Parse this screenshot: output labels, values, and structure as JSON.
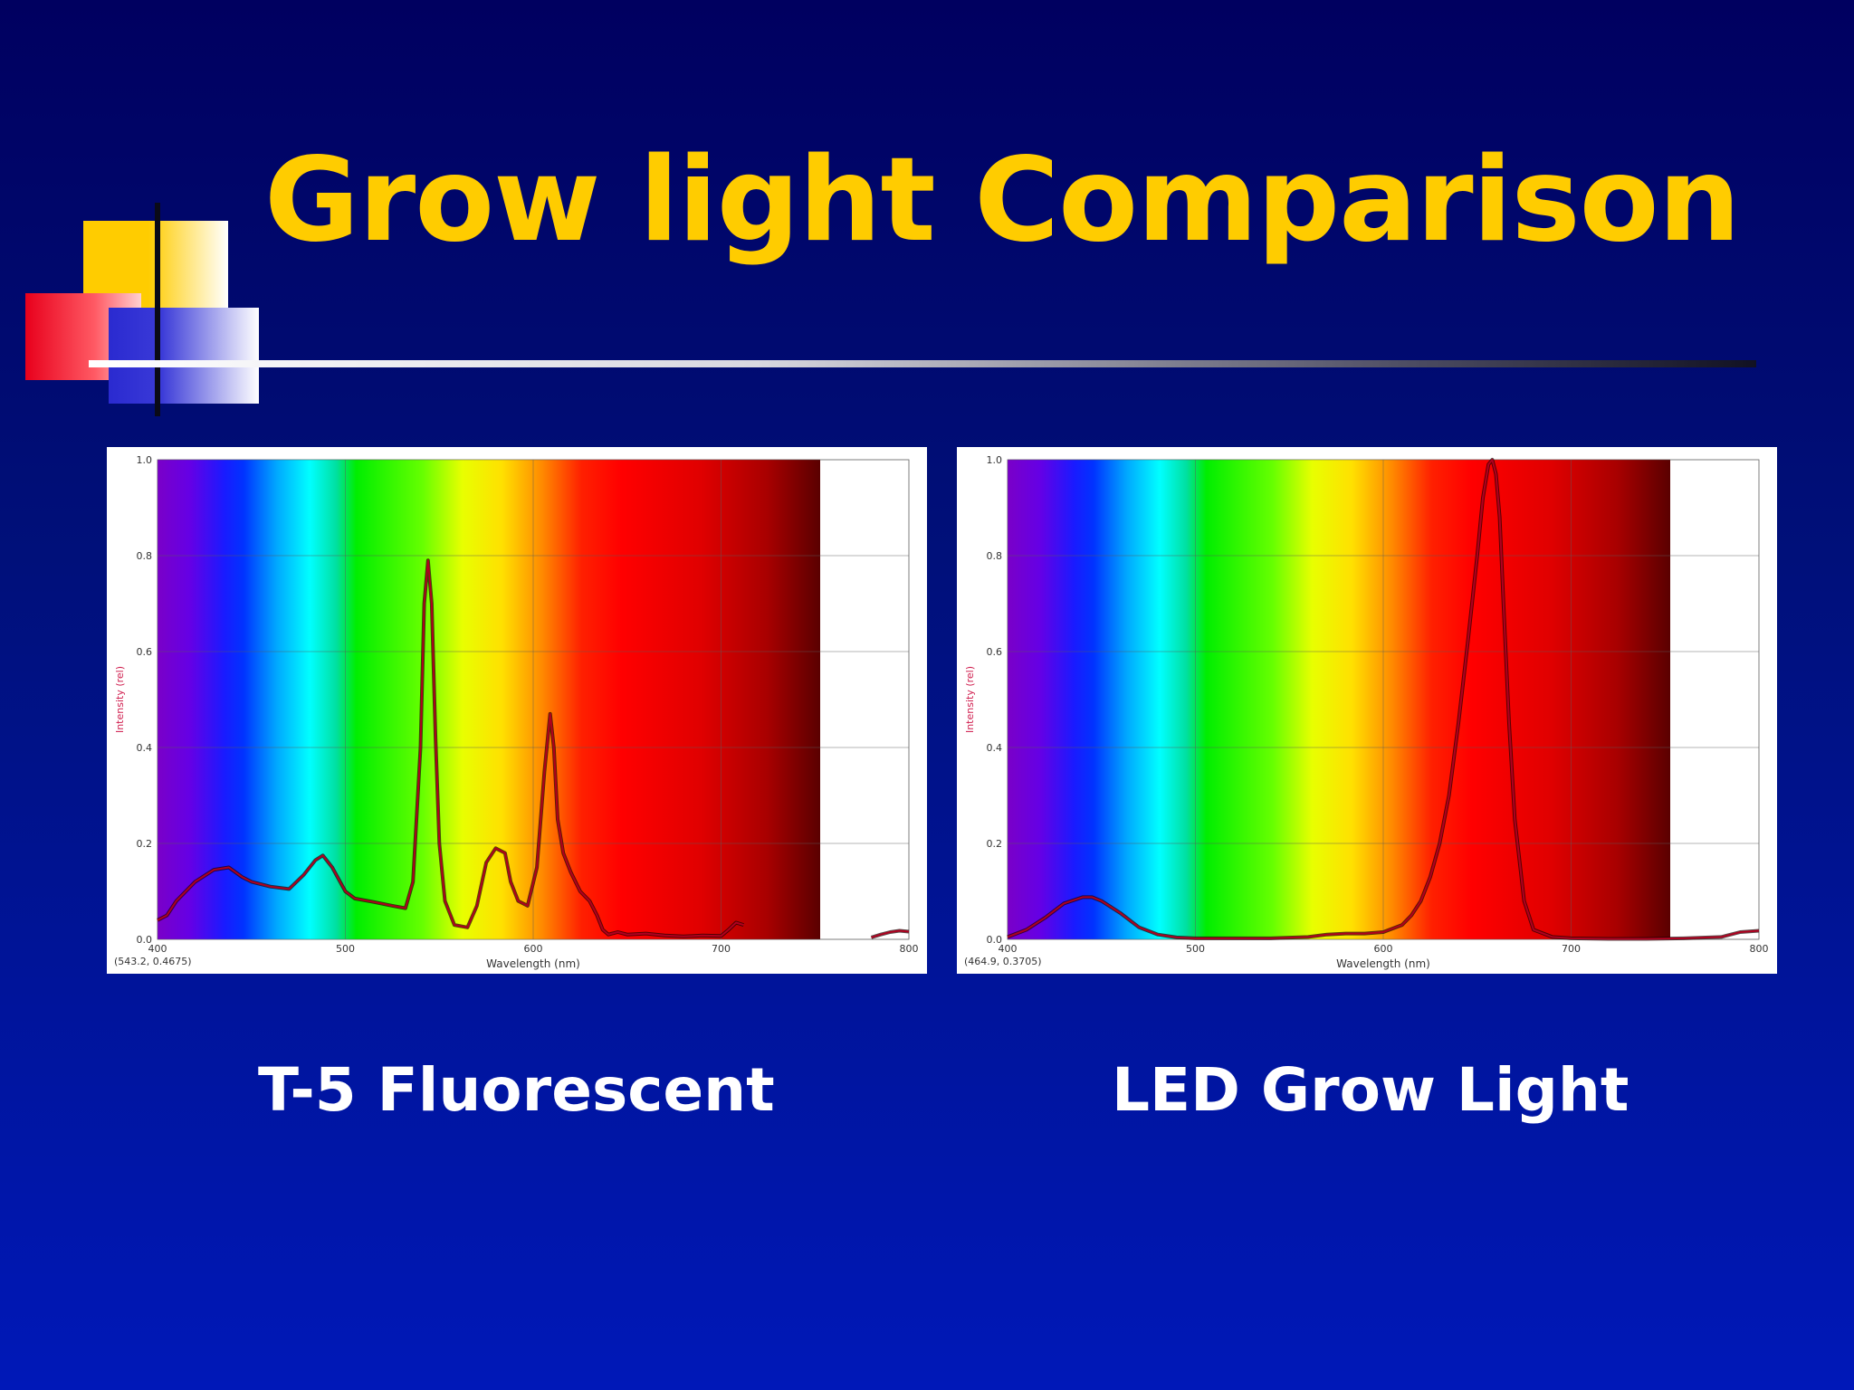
{
  "slide": {
    "title": "Grow light Comparison"
  },
  "captions": {
    "left": "T-5 Fluorescent",
    "right": "LED Grow Light"
  },
  "colors": {
    "title": "#ffcc00",
    "caption": "#ffffff",
    "curve": "#b00020",
    "background": "#0010a0"
  },
  "chart_data": [
    {
      "type": "line",
      "xlabel": "Wavelength (nm)",
      "ylabel": "Intensity (rel)",
      "xlim": [
        400,
        800
      ],
      "ylim": [
        0,
        1
      ],
      "xticks": [
        400,
        500,
        600,
        700,
        800
      ],
      "yticks": [
        "0.0",
        "0.2",
        "0.4",
        "0.6",
        "0.8",
        "1.0"
      ],
      "grid": true,
      "background": "visible-spectrum",
      "readout": "(543.2, 0.4675)",
      "series": [
        {
          "x": [
            400,
            405,
            410,
            420,
            430,
            438,
            445,
            450,
            460,
            470,
            478,
            484,
            488,
            493,
            500,
            505,
            515,
            525,
            532,
            536,
            540,
            542,
            544,
            546,
            548,
            550,
            553,
            558,
            565,
            570,
            575,
            580,
            585,
            588,
            592,
            597,
            602,
            606,
            609,
            611,
            613,
            616,
            620,
            625,
            630,
            634,
            637,
            640,
            645,
            650,
            660,
            670,
            680,
            690,
            700,
            704,
            708,
            712
          ],
          "y": [
            0.04,
            0.05,
            0.08,
            0.12,
            0.145,
            0.15,
            0.13,
            0.12,
            0.11,
            0.105,
            0.135,
            0.165,
            0.175,
            0.15,
            0.1,
            0.085,
            0.078,
            0.07,
            0.065,
            0.12,
            0.4,
            0.7,
            0.79,
            0.7,
            0.42,
            0.2,
            0.08,
            0.03,
            0.025,
            0.07,
            0.16,
            0.19,
            0.18,
            0.12,
            0.08,
            0.07,
            0.15,
            0.35,
            0.47,
            0.4,
            0.25,
            0.18,
            0.14,
            0.1,
            0.08,
            0.05,
            0.02,
            0.01,
            0.015,
            0.01,
            0.012,
            0.008,
            0.006,
            0.008,
            0.007,
            0.02,
            0.035,
            0.03
          ]
        },
        {
          "x": [
            780,
            785,
            790,
            795,
            800
          ],
          "y": [
            0.004,
            0.01,
            0.015,
            0.018,
            0.016
          ]
        }
      ]
    },
    {
      "type": "line",
      "xlabel": "Wavelength (nm)",
      "ylabel": "Intensity (rel)",
      "xlim": [
        400,
        800
      ],
      "ylim": [
        0,
        1
      ],
      "xticks": [
        400,
        500,
        600,
        700,
        800
      ],
      "yticks": [
        "0.0",
        "0.2",
        "0.4",
        "0.6",
        "0.8",
        "1.0"
      ],
      "grid": true,
      "background": "visible-spectrum",
      "readout": "(464.9, 0.3705)",
      "series": [
        {
          "x": [
            400,
            410,
            420,
            430,
            440,
            445,
            450,
            460,
            470,
            480,
            490,
            500,
            520,
            540,
            560,
            570,
            580,
            590,
            600,
            610,
            615,
            620,
            625,
            630,
            635,
            640,
            645,
            650,
            653,
            656,
            658,
            660,
            662,
            664,
            667,
            670,
            675,
            680,
            690,
            700,
            720,
            740,
            760,
            780,
            790,
            800
          ],
          "y": [
            0.005,
            0.02,
            0.045,
            0.075,
            0.088,
            0.088,
            0.08,
            0.055,
            0.025,
            0.01,
            0.004,
            0.002,
            0.002,
            0.002,
            0.005,
            0.01,
            0.012,
            0.012,
            0.015,
            0.03,
            0.05,
            0.08,
            0.13,
            0.2,
            0.3,
            0.45,
            0.62,
            0.8,
            0.92,
            0.99,
            1.0,
            0.97,
            0.88,
            0.7,
            0.45,
            0.25,
            0.08,
            0.02,
            0.005,
            0.002,
            0.001,
            0.001,
            0.002,
            0.005,
            0.015,
            0.018
          ]
        }
      ]
    }
  ]
}
